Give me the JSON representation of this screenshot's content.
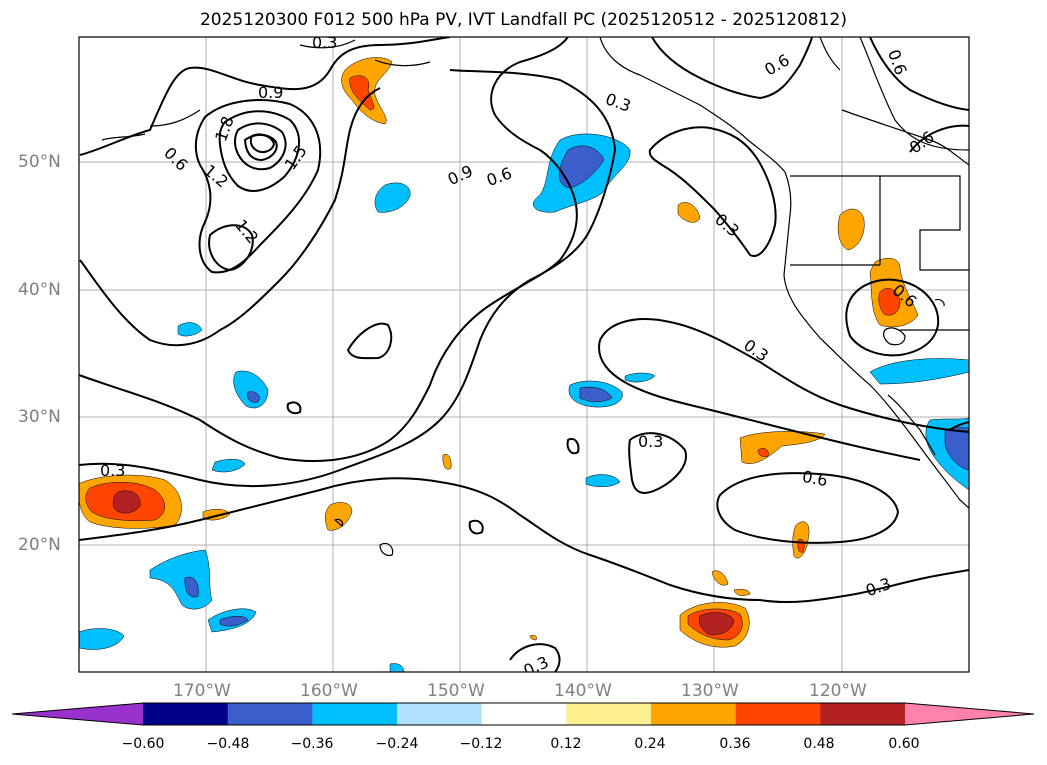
{
  "title": "2025120300 F012 500 hPa PV, IVT Landfall PC (2025120512 - 2025120812)",
  "lat_labels": [
    "50°N",
    "40°N",
    "30°N",
    "20°N"
  ],
  "lon_labels": [
    "170°W",
    "160°W",
    "150°W",
    "140°W",
    "130°W",
    "120°W"
  ],
  "contour_labels": [
    "0.3",
    "0.9",
    "1.8",
    "1.5",
    "1.2",
    "0.6",
    "1.2",
    "0.9",
    "0.6",
    "0.3",
    "0.6",
    "0.6",
    "0.3",
    "0.6",
    "0.6",
    "0.3",
    "0.3",
    "0.6",
    "0.3",
    "0.3",
    "0.3"
  ],
  "colorbar": {
    "ticks": [
      "−0.60",
      "−0.48",
      "−0.36",
      "−0.24",
      "−0.12",
      "0.12",
      "0.24",
      "0.36",
      "0.48",
      "0.60"
    ],
    "colors": [
      "#9932cc",
      "#00008b",
      "#3a5fcd",
      "#00bfff",
      "#b0e2ff",
      "#ffffff",
      "#fff08f",
      "#ffa500",
      "#ff4500",
      "#b22222",
      "#ff82ab"
    ]
  },
  "fill_colors": {
    "neg_light": "#00bfff",
    "neg_mid": "#3a5fcd",
    "pos_light": "#ffa500",
    "pos_mid": "#ff4500",
    "pos_dark": "#b22222"
  }
}
